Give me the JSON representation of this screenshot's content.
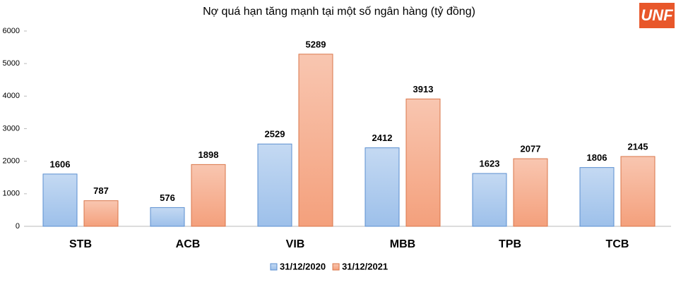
{
  "chart_data": {
    "type": "bar",
    "title": "Nợ quá hạn tăng mạnh tại một số ngân hàng (tỷ đồng)",
    "logo_text": "UNF",
    "categories": [
      "STB",
      "ACB",
      "VIB",
      "MBB",
      "TPB",
      "TCB"
    ],
    "series": [
      {
        "name": "31/12/2020",
        "color": "#9dc0ea",
        "values": [
          1606,
          576,
          2529,
          2412,
          1623,
          1806
        ]
      },
      {
        "name": "31/12/2021",
        "color": "#f4a07c",
        "values": [
          787,
          1898,
          5289,
          3913,
          2077,
          2145
        ]
      }
    ],
    "ylim": [
      0,
      6000
    ],
    "yticks": [
      0,
      1000,
      2000,
      3000,
      4000,
      5000,
      6000
    ],
    "grid": false,
    "legend": "bottom"
  }
}
